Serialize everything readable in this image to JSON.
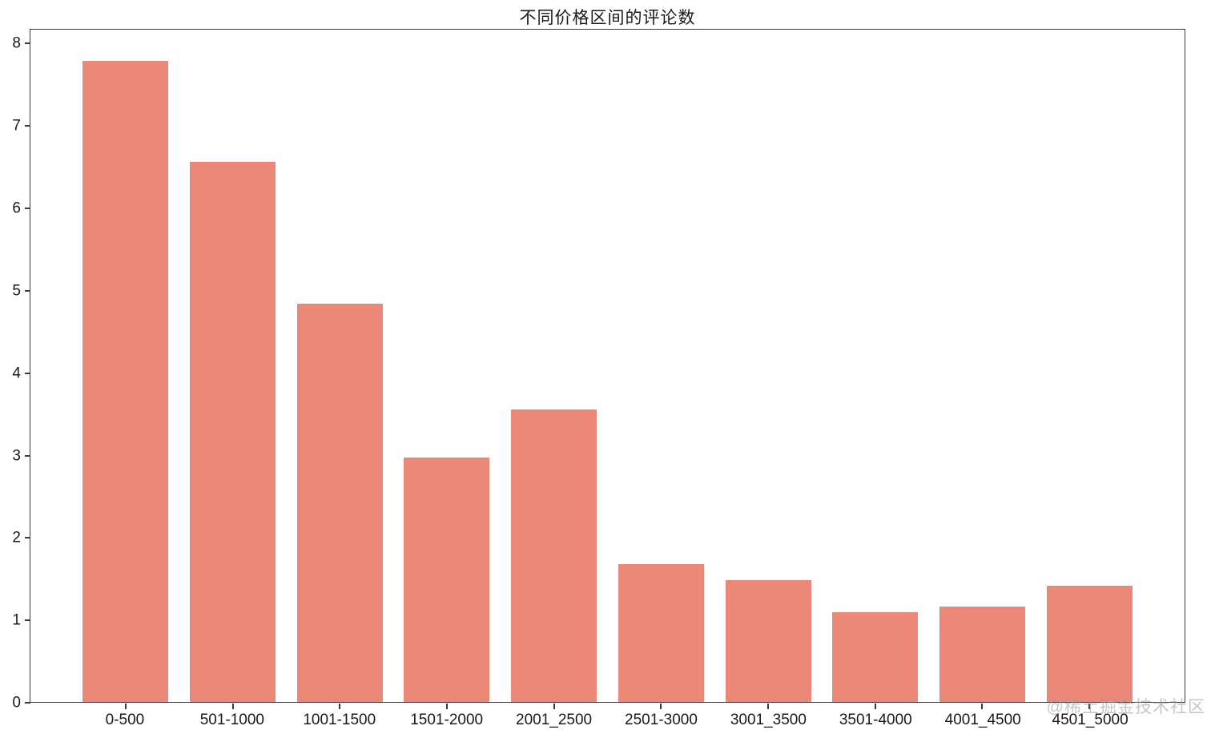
{
  "chart_data": {
    "type": "bar",
    "title": "不同价格区间的评论数",
    "categories": [
      "0-500",
      "501-1000",
      "1001-1500",
      "1501-2000",
      "2001_2500",
      "2501-3000",
      "3001_3500",
      "3501-4000",
      "4001_4500",
      "4501_5000"
    ],
    "values": [
      7.78,
      6.56,
      4.83,
      2.97,
      3.55,
      1.67,
      1.48,
      1.09,
      1.16,
      1.41
    ],
    "xlabel": "",
    "ylabel": "",
    "ylim": [
      0,
      8.16
    ],
    "yticks": [
      0,
      1,
      2,
      3,
      4,
      5,
      6,
      7,
      8
    ],
    "grid": false,
    "legend": false,
    "bar_color": "#ec8878",
    "spine_color": "#3a3a3a",
    "text_color": "#1a1a1a"
  },
  "watermark": {
    "text": "@稀土掘金技术社区",
    "color": "#999999"
  }
}
